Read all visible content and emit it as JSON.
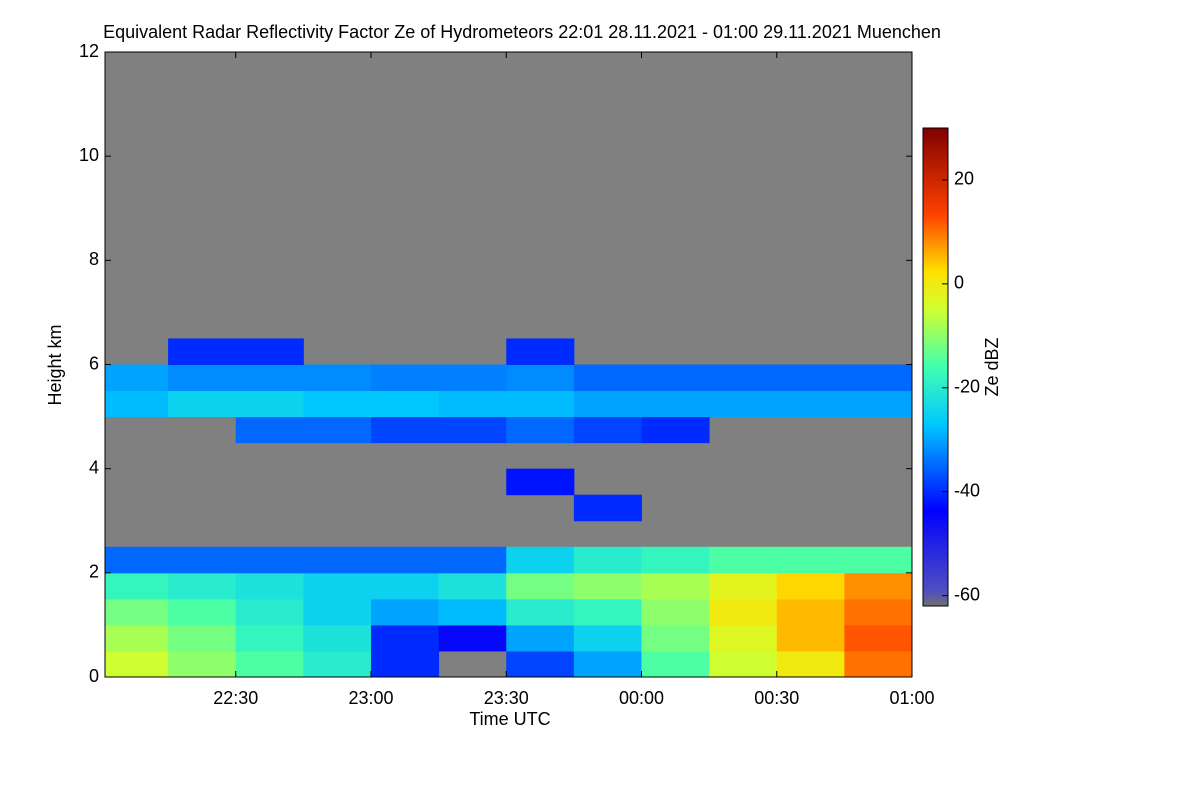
{
  "chart_data": {
    "type": "heatmap",
    "title": "Equivalent Radar Reflectivity Factor Ze of Hydrometeors   22:01 28.11.2021 - 01:00 29.11.2021 Muenchen",
    "xlabel": "Time UTC",
    "ylabel": "Height km",
    "colorbar_label": "Ze dBZ",
    "xlim": [
      22.0167,
      25.0
    ],
    "xticks": [
      {
        "value": 22.5,
        "label": "22:30"
      },
      {
        "value": 23,
        "label": "23:00"
      },
      {
        "value": 23.5,
        "label": "23:30"
      },
      {
        "value": 24,
        "label": "00:00"
      },
      {
        "value": 24.5,
        "label": "00:30"
      },
      {
        "value": 25,
        "label": "01:00"
      }
    ],
    "ylim": [
      0,
      12
    ],
    "yticks": [
      0,
      2,
      4,
      6,
      8,
      10,
      12
    ],
    "zlim": [
      -62,
      30
    ],
    "zticks": [
      20,
      0,
      -20,
      -40,
      -60
    ],
    "background": "#808080",
    "xbins": [
      22.0,
      22.25,
      22.5,
      22.75,
      23.0,
      23.25,
      23.5,
      23.75,
      24.0,
      24.25,
      24.5,
      24.75,
      25.0
    ],
    "ybins": [
      0,
      0.5,
      1,
      1.5,
      2,
      2.5,
      3,
      3.5,
      4,
      4.5,
      5,
      5.5,
      6,
      6.5
    ],
    "z": [
      [
        -5,
        -10,
        -15,
        -20,
        -40,
        null,
        -38,
        -30,
        -15,
        -5,
        0,
        10
      ],
      [
        -8,
        -12,
        -18,
        -22,
        -40,
        -45,
        -30,
        -25,
        -12,
        -3,
        5,
        12
      ],
      [
        -12,
        -15,
        -20,
        -25,
        -30,
        -28,
        -20,
        -18,
        -10,
        0,
        5,
        10
      ],
      [
        -18,
        -20,
        -22,
        -25,
        -25,
        -22,
        -12,
        -10,
        -8,
        -2,
        3,
        8
      ],
      [
        -35,
        -35,
        -35,
        -35,
        -35,
        -35,
        -25,
        -20,
        -18,
        -15,
        -15,
        -15
      ],
      [
        null,
        null,
        null,
        null,
        null,
        null,
        null,
        null,
        null,
        null,
        null,
        null
      ],
      [
        null,
        null,
        null,
        null,
        null,
        null,
        null,
        -40,
        null,
        null,
        null,
        null
      ],
      [
        null,
        null,
        null,
        null,
        null,
        null,
        -42,
        null,
        null,
        null,
        null,
        null
      ],
      [
        null,
        null,
        null,
        null,
        null,
        null,
        null,
        null,
        null,
        null,
        null,
        null
      ],
      [
        null,
        null,
        -35,
        -35,
        -38,
        -38,
        -35,
        -38,
        -40,
        null,
        null,
        null
      ],
      [
        -28,
        -25,
        -25,
        -27,
        -27,
        -28,
        -28,
        -30,
        -30,
        -30,
        -30,
        -30
      ],
      [
        -30,
        -32,
        -32,
        -32,
        -33,
        -33,
        -32,
        -35,
        -35,
        -35,
        -35,
        -35
      ],
      [
        null,
        -40,
        -40,
        null,
        null,
        null,
        -40,
        null,
        null,
        null,
        null,
        null
      ]
    ]
  }
}
